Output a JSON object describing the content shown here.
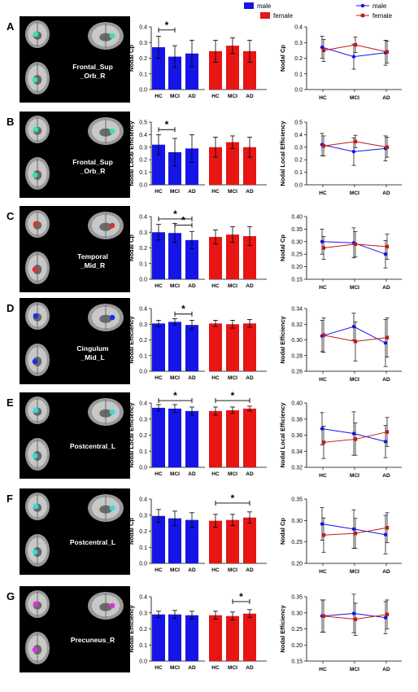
{
  "legends": {
    "bar": [
      {
        "name": "male",
        "color": "#1515e8"
      },
      {
        "name": "female",
        "color": "#e81515"
      }
    ],
    "line": [
      {
        "name": "male",
        "color": "#1515e8",
        "marker": "circle"
      },
      {
        "name": "female",
        "color": "#c01a1a",
        "marker": "square"
      }
    ]
  },
  "chart_data": [
    {
      "panel": "A",
      "region": [
        "Frontal_Sup",
        "_Orb_R"
      ],
      "ylabel": "Nodal Cp",
      "bar": {
        "ylim": [
          0,
          0.4
        ],
        "ticks": [
          "0.0",
          "0.1",
          "0.2",
          "0.3",
          "0.4"
        ],
        "categories": [
          "HC",
          "MCI",
          "AD"
        ],
        "series": [
          {
            "name": "male",
            "values": [
              0.27,
              0.21,
              0.23
            ],
            "errors": [
              0.07,
              0.07,
              0.085
            ]
          },
          {
            "name": "female",
            "values": [
              0.245,
              0.28,
              0.245
            ],
            "errors": [
              0.07,
              0.05,
              0.07
            ]
          }
        ],
        "sig": [
          {
            "group": "male",
            "from": 0,
            "to": 1,
            "level": 0.38,
            "label": "*"
          }
        ]
      },
      "line": {
        "ylim": [
          0,
          0.4
        ],
        "ticks": [
          "0.0",
          "0.1",
          "0.2",
          "0.3",
          "0.4"
        ],
        "categories": [
          "HC",
          "MCI",
          "AD"
        ],
        "series": [
          {
            "name": "male",
            "values": [
              0.27,
              0.21,
              0.235
            ],
            "errors": [
              0.07,
              0.08,
              0.08
            ]
          },
          {
            "name": "female",
            "values": [
              0.25,
              0.285,
              0.24
            ],
            "errors": [
              0.07,
              0.05,
              0.07
            ]
          }
        ]
      }
    },
    {
      "panel": "B",
      "region": [
        "Frontal_Sup",
        "_Orb_R"
      ],
      "ylabel": "Nodal Local Efficiency",
      "bar": {
        "ylim": [
          0,
          0.5
        ],
        "ticks": [
          "0.0",
          "0.1",
          "0.2",
          "0.3",
          "0.4",
          "0.5"
        ],
        "categories": [
          "HC",
          "MCI",
          "AD"
        ],
        "series": [
          {
            "name": "male",
            "values": [
              0.32,
              0.26,
              0.29
            ],
            "errors": [
              0.08,
              0.11,
              0.11
            ]
          },
          {
            "name": "female",
            "values": [
              0.3,
              0.34,
              0.3
            ],
            "errors": [
              0.08,
              0.05,
              0.08
            ]
          }
        ],
        "sig": [
          {
            "group": "male",
            "from": 0,
            "to": 1,
            "level": 0.44,
            "label": "*"
          }
        ]
      },
      "line": {
        "ylim": [
          0,
          0.5
        ],
        "ticks": [
          "0.0",
          "0.1",
          "0.2",
          "0.3",
          "0.4",
          "0.5"
        ],
        "categories": [
          "HC",
          "MCI",
          "AD"
        ],
        "series": [
          {
            "name": "male",
            "values": [
              0.32,
              0.265,
              0.29
            ],
            "errors": [
              0.09,
              0.11,
              0.1
            ]
          },
          {
            "name": "female",
            "values": [
              0.31,
              0.345,
              0.3
            ],
            "errors": [
              0.08,
              0.05,
              0.08
            ]
          }
        ]
      }
    },
    {
      "panel": "C",
      "region": [
        "Temporal",
        "_Mid_R"
      ],
      "ylabel": "Nodal Cp",
      "bar": {
        "ylim": [
          0,
          0.4
        ],
        "ticks": [
          "0.0",
          "0.1",
          "0.2",
          "0.3",
          "0.4"
        ],
        "categories": [
          "HC",
          "MCI",
          "AD"
        ],
        "series": [
          {
            "name": "male",
            "values": [
              0.3,
              0.295,
              0.25
            ],
            "errors": [
              0.05,
              0.06,
              0.055
            ]
          },
          {
            "name": "female",
            "values": [
              0.27,
              0.285,
              0.275
            ],
            "errors": [
              0.045,
              0.05,
              0.06
            ]
          }
        ],
        "sig": [
          {
            "group": "male",
            "from": 0,
            "to": 2,
            "level": 0.385,
            "label": "*"
          },
          {
            "group": "male",
            "from": 1,
            "to": 2,
            "level": 0.345,
            "label": "*"
          }
        ]
      },
      "line": {
        "ylim": [
          0.15,
          0.4
        ],
        "ticks": [
          "0.15",
          "0.20",
          "0.25",
          "0.30",
          "0.35",
          "0.40"
        ],
        "categories": [
          "HC",
          "MCI",
          "AD"
        ],
        "series": [
          {
            "name": "male",
            "values": [
              0.3,
              0.295,
              0.25
            ],
            "errors": [
              0.05,
              0.06,
              0.055
            ]
          },
          {
            "name": "female",
            "values": [
              0.275,
              0.29,
              0.28
            ],
            "errors": [
              0.045,
              0.05,
              0.05
            ]
          }
        ]
      }
    },
    {
      "panel": "D",
      "region": [
        "Cingulum",
        "_Mid_L"
      ],
      "ylabel": "Nodal Efficiency",
      "bar": {
        "ylim": [
          0,
          0.4
        ],
        "ticks": [
          "0.0",
          "0.1",
          "0.2",
          "0.3",
          "0.4"
        ],
        "categories": [
          "HC",
          "MCI",
          "AD"
        ],
        "series": [
          {
            "name": "male",
            "values": [
              0.305,
              0.315,
              0.295
            ],
            "errors": [
              0.02,
              0.02,
              0.03
            ]
          },
          {
            "name": "female",
            "values": [
              0.305,
              0.3,
              0.305
            ],
            "errors": [
              0.02,
              0.025,
              0.025
            ]
          }
        ],
        "sig": [
          {
            "group": "male",
            "from": 1,
            "to": 2,
            "level": 0.365,
            "label": "*"
          }
        ]
      },
      "line": {
        "ylim": [
          0.26,
          0.34
        ],
        "ticks": [
          "0.26",
          "0.28",
          "0.30",
          "0.32",
          "0.34"
        ],
        "categories": [
          "HC",
          "MCI",
          "AD"
        ],
        "series": [
          {
            "name": "male",
            "values": [
              0.305,
              0.317,
              0.296
            ],
            "errors": [
              0.02,
              0.017,
              0.03
            ]
          },
          {
            "name": "female",
            "values": [
              0.306,
              0.298,
              0.303
            ],
            "errors": [
              0.022,
              0.025,
              0.025
            ]
          }
        ]
      }
    },
    {
      "panel": "E",
      "region": [
        "Postcentral_L"
      ],
      "ylabel": "Nodal Local Efficiency",
      "bar": {
        "ylim": [
          0,
          0.4
        ],
        "ticks": [
          "0.0",
          "0.1",
          "0.2",
          "0.3",
          "0.4"
        ],
        "categories": [
          "HC",
          "MCI",
          "AD"
        ],
        "series": [
          {
            "name": "male",
            "values": [
              0.37,
              0.365,
              0.35
            ],
            "errors": [
              0.02,
              0.025,
              0.025
            ]
          },
          {
            "name": "female",
            "values": [
              0.35,
              0.355,
              0.365
            ],
            "errors": [
              0.025,
              0.02,
              0.015
            ]
          }
        ],
        "sig": [
          {
            "group": "male",
            "from": 0,
            "to": 2,
            "level": 0.415,
            "label": "*"
          },
          {
            "group": "female",
            "from": 0,
            "to": 2,
            "level": 0.415,
            "label": "*"
          }
        ]
      },
      "line": {
        "ylim": [
          0.32,
          0.4
        ],
        "ticks": [
          "0.32",
          "0.34",
          "0.36",
          "0.38",
          "0.40"
        ],
        "categories": [
          "HC",
          "MCI",
          "AD"
        ],
        "series": [
          {
            "name": "male",
            "values": [
              0.368,
              0.362,
              0.352
            ],
            "errors": [
              0.02,
              0.027,
              0.02
            ]
          },
          {
            "name": "female",
            "values": [
              0.351,
              0.355,
              0.364
            ],
            "errors": [
              0.02,
              0.02,
              0.018
            ]
          }
        ]
      }
    },
    {
      "panel": "F",
      "region": [
        "Postcentral_L"
      ],
      "ylabel": "Nodal Cp",
      "bar": {
        "ylim": [
          0,
          0.4
        ],
        "ticks": [
          "0.0",
          "0.1",
          "0.2",
          "0.3",
          "0.4"
        ],
        "categories": [
          "HC",
          "MCI",
          "AD"
        ],
        "series": [
          {
            "name": "male",
            "values": [
              0.295,
              0.28,
              0.27
            ],
            "errors": [
              0.04,
              0.045,
              0.045
            ]
          },
          {
            "name": "female",
            "values": [
              0.265,
              0.27,
              0.285
            ],
            "errors": [
              0.04,
              0.035,
              0.035
            ]
          }
        ],
        "sig": [
          {
            "group": "female",
            "from": 0,
            "to": 2,
            "level": 0.375,
            "label": "*"
          }
        ]
      },
      "line": {
        "ylim": [
          0.2,
          0.35
        ],
        "ticks": [
          "0.20",
          "0.25",
          "0.30",
          "0.35"
        ],
        "categories": [
          "HC",
          "MCI",
          "AD"
        ],
        "series": [
          {
            "name": "male",
            "values": [
              0.292,
              0.28,
              0.267
            ],
            "errors": [
              0.038,
              0.045,
              0.045
            ]
          },
          {
            "name": "female",
            "values": [
              0.266,
              0.27,
              0.283
            ],
            "errors": [
              0.04,
              0.035,
              0.035
            ]
          }
        ]
      }
    },
    {
      "panel": "G",
      "region": [
        "Precuneus_R"
      ],
      "ylabel": "Nodal Efficiency",
      "bar": {
        "ylim": [
          0,
          0.4
        ],
        "ticks": [
          "0.0",
          "0.1",
          "0.2",
          "0.3",
          "0.4"
        ],
        "categories": [
          "HC",
          "MCI",
          "AD"
        ],
        "series": [
          {
            "name": "male",
            "values": [
              0.29,
              0.29,
              0.285
            ],
            "errors": [
              0.02,
              0.025,
              0.025
            ]
          },
          {
            "name": "female",
            "values": [
              0.285,
              0.28,
              0.295
            ],
            "errors": [
              0.025,
              0.025,
              0.025
            ]
          }
        ],
        "sig": [
          {
            "group": "female",
            "from": 1,
            "to": 2,
            "level": 0.37,
            "label": "*"
          }
        ]
      },
      "line": {
        "ylim": [
          0.15,
          0.35
        ],
        "ticks": [
          "0.15",
          "0.20",
          "0.25",
          "0.30",
          "0.35"
        ],
        "categories": [
          "HC",
          "MCI",
          "AD"
        ],
        "series": [
          {
            "name": "male",
            "values": [
              0.29,
              0.298,
              0.285
            ],
            "errors": [
              0.05,
              0.06,
              0.05
            ]
          },
          {
            "name": "female",
            "values": [
              0.29,
              0.28,
              0.295
            ],
            "errors": [
              0.05,
              0.05,
              0.045
            ]
          }
        ]
      }
    }
  ]
}
